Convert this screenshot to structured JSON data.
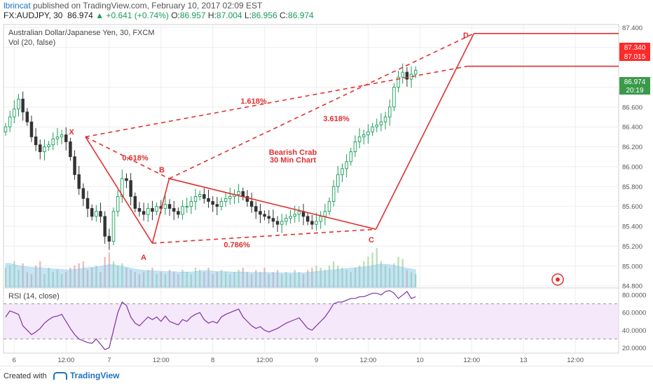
{
  "header": {
    "author": "lbrincat",
    "published_text": "published on TradingView.com, February 10, 2017 02:09 EST",
    "symbol": "FX:AUDJPY, 30",
    "last": "86.974",
    "change": "+0.641 (+0.74%)",
    "open_label": "O:",
    "open": "86.957",
    "high_label": "H:",
    "high": "87.004",
    "low_label": "L:",
    "low": "86.956",
    "close_label": "C:",
    "close": "86.974"
  },
  "chart_data": {
    "type": "line",
    "title": "Australian Dollar/Japanese Yen, 30, FXCM",
    "volume_label": "Vol (20, false)",
    "rsi_label": "RSI (14, close)",
    "ylim": [
      84.78,
      87.43
    ],
    "y_ticks": [
      "87.400",
      "87.200",
      "86.800",
      "86.600",
      "86.400",
      "86.200",
      "86.000",
      "85.800",
      "85.600",
      "85.400",
      "85.200",
      "85.000",
      "84.800"
    ],
    "rsi_ylim": [
      14,
      88
    ],
    "rsi_ticks": [
      "80.0000",
      "60.0000",
      "40.0000",
      "20.0000"
    ],
    "rsi_band": [
      70,
      30
    ],
    "x_labels": [
      {
        "label": "6",
        "i": 2
      },
      {
        "label": "12:00",
        "i": 14
      },
      {
        "label": "7",
        "i": 24
      },
      {
        "label": "12:00",
        "i": 36
      },
      {
        "label": "8",
        "i": 48
      },
      {
        "label": "12:00",
        "i": 60
      },
      {
        "label": "9",
        "i": 72
      },
      {
        "label": "12:00",
        "i": 84
      },
      {
        "label": "10",
        "i": 96
      },
      {
        "label": "12:00",
        "i": 108
      },
      {
        "label": "13",
        "i": 120
      },
      {
        "label": "12:00",
        "i": 132
      }
    ],
    "close_series": [
      86.4,
      86.5,
      86.58,
      86.68,
      86.55,
      86.45,
      86.3,
      86.22,
      86.15,
      86.2,
      86.22,
      86.28,
      86.3,
      86.32,
      86.25,
      86.1,
      85.92,
      85.78,
      85.68,
      85.58,
      85.5,
      85.55,
      85.5,
      85.3,
      85.25,
      85.55,
      85.7,
      85.88,
      85.86,
      85.7,
      85.58,
      85.55,
      85.52,
      85.58,
      85.55,
      85.6,
      85.58,
      85.62,
      85.58,
      85.55,
      85.52,
      85.6,
      85.6,
      85.65,
      85.7,
      85.72,
      85.68,
      85.65,
      85.62,
      85.6,
      85.65,
      85.68,
      85.7,
      85.72,
      85.75,
      85.7,
      85.65,
      85.6,
      85.55,
      85.52,
      85.5,
      85.48,
      85.45,
      85.42,
      85.45,
      85.48,
      85.5,
      85.52,
      85.55,
      85.5,
      85.45,
      85.42,
      85.45,
      85.5,
      85.55,
      85.65,
      85.8,
      85.92,
      85.98,
      86.05,
      86.15,
      86.25,
      86.3,
      86.32,
      86.35,
      86.4,
      86.42,
      86.45,
      86.5,
      86.6,
      86.8,
      86.9,
      86.95,
      86.88,
      86.93,
      86.97
    ],
    "volume_profile": [
      0.45,
      0.5,
      0.6,
      0.4,
      0.55,
      0.35,
      0.3,
      0.5,
      0.6,
      0.3,
      0.45,
      0.35,
      0.4,
      0.3,
      0.35,
      0.45,
      0.5,
      0.55,
      0.6,
      0.4,
      0.45,
      0.5,
      0.35,
      0.7,
      0.8,
      0.6,
      0.5,
      0.55,
      0.45,
      0.4,
      0.35,
      0.3,
      0.35,
      0.4,
      0.45,
      0.3,
      0.35,
      0.3,
      0.4,
      0.35,
      0.3,
      0.4,
      0.35,
      0.3,
      0.45,
      0.4,
      0.35,
      0.45,
      0.3,
      0.35,
      0.4,
      0.35,
      0.3,
      0.35,
      0.4,
      0.45,
      0.35,
      0.3,
      0.4,
      0.35,
      0.45,
      0.3,
      0.35,
      0.4,
      0.3,
      0.35,
      0.3,
      0.4,
      0.35,
      0.3,
      0.4,
      0.45,
      0.5,
      0.45,
      0.4,
      0.5,
      0.6,
      0.5,
      0.45,
      0.4,
      0.35,
      0.45,
      0.5,
      0.6,
      0.7,
      0.8,
      0.9,
      0.6,
      0.5,
      0.45,
      0.55,
      0.7,
      0.65,
      0.4,
      0.35,
      0.3
    ],
    "volume_avg": [
      0.55,
      0.55,
      0.52,
      0.5,
      0.48,
      0.47,
      0.46,
      0.45,
      0.45,
      0.44,
      0.43,
      0.42,
      0.42,
      0.41,
      0.4,
      0.4,
      0.41,
      0.42,
      0.44,
      0.45,
      0.46,
      0.47,
      0.48,
      0.5,
      0.52,
      0.52,
      0.5,
      0.48,
      0.46,
      0.44,
      0.42,
      0.4,
      0.39,
      0.38,
      0.38,
      0.37,
      0.37,
      0.36,
      0.36,
      0.36,
      0.35,
      0.35,
      0.35,
      0.35,
      0.36,
      0.37,
      0.38,
      0.38,
      0.37,
      0.36,
      0.36,
      0.36,
      0.35,
      0.35,
      0.35,
      0.35,
      0.34,
      0.34,
      0.34,
      0.34,
      0.34,
      0.34,
      0.33,
      0.33,
      0.33,
      0.33,
      0.33,
      0.33,
      0.33,
      0.33,
      0.34,
      0.35,
      0.36,
      0.37,
      0.38,
      0.39,
      0.4,
      0.41,
      0.42,
      0.43,
      0.44,
      0.45,
      0.46,
      0.47,
      0.48,
      0.5,
      0.52,
      0.53,
      0.53,
      0.52,
      0.5,
      0.48,
      0.46,
      0.44,
      0.42,
      0.4
    ],
    "rsi_series": [
      55,
      62,
      60,
      58,
      45,
      40,
      35,
      38,
      42,
      48,
      52,
      55,
      56,
      58,
      50,
      42,
      35,
      30,
      28,
      26,
      25,
      30,
      24,
      18,
      20,
      40,
      60,
      72,
      68,
      55,
      48,
      45,
      50,
      55,
      52,
      55,
      50,
      56,
      50,
      48,
      46,
      52,
      50,
      55,
      58,
      60,
      52,
      48,
      50,
      48,
      55,
      58,
      60,
      62,
      64,
      55,
      50,
      45,
      42,
      44,
      40,
      38,
      40,
      42,
      45,
      48,
      50,
      52,
      54,
      48,
      42,
      40,
      45,
      50,
      55,
      62,
      70,
      72,
      72,
      74,
      76,
      76,
      78,
      78,
      80,
      82,
      82,
      80,
      84,
      85,
      82,
      76,
      80,
      84,
      76,
      78
    ],
    "annotations": {
      "pattern_name": "Bearish Crab",
      "timeframe_note": "30 Min Chart",
      "point_labels": [
        "X",
        "A",
        "B",
        "C",
        "D"
      ],
      "ratios": [
        "0.618%",
        "1.618%",
        "3.618%",
        "0.786%"
      ]
    },
    "levels": [
      {
        "value": "87.340",
        "price": 87.34
      },
      {
        "value": "87.015",
        "price": 87.015
      }
    ],
    "last_price": {
      "value": "86.974",
      "price": 86.974,
      "countdown": "20:19"
    },
    "pattern_points": {
      "X": {
        "i": 18.5,
        "price": 86.3
      },
      "A": {
        "i": 34.0,
        "price": 85.23
      },
      "B": {
        "i": 37.9,
        "price": 85.88
      },
      "C": {
        "i": 85.8,
        "price": 85.37
      },
      "D": {
        "i": 108.5,
        "price": 87.34
      }
    },
    "level_line_start": {
      "i": 107.0,
      "price": 87.01
    }
  },
  "colors": {
    "pattern": "#e03030",
    "bull": "#1a9d5a",
    "bear": "#333333",
    "level_box": "#ff2a2a",
    "last_box": "#3a9a4a",
    "volume": "#7fc4e8",
    "rsi_line": "#8030a8",
    "rsi_band": "#f4e8fa",
    "grid": "#eeeeee"
  },
  "footer": {
    "created": "Created with",
    "brand": "TradingView"
  }
}
